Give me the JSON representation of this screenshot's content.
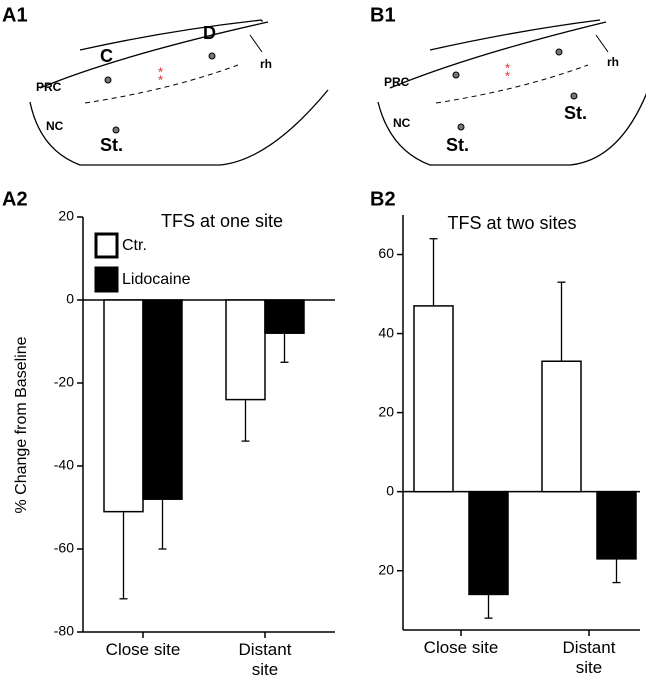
{
  "diagrams": [
    {
      "panel_label": "A1",
      "C": "C",
      "D": "D",
      "PRC": "PRC",
      "NC": "NC",
      "St": "St.",
      "rh": "rh",
      "asterisks": [
        "*",
        "*"
      ]
    },
    {
      "panel_label": "B1",
      "PRC": "PRC",
      "NC": "NC",
      "St": [
        "St.",
        "St."
      ],
      "rh": "rh",
      "asterisks": [
        "*",
        "*"
      ]
    }
  ],
  "chart_data": [
    {
      "type": "bar",
      "panel_label": "A2",
      "title": "TFS at one site",
      "ylabel": "% Change from Baseline",
      "categories": [
        "Close site",
        "Distant site"
      ],
      "series": [
        {
          "name": "Ctr.",
          "color": "#ffffff",
          "values": [
            -51,
            -24
          ],
          "errors": [
            21,
            10
          ]
        },
        {
          "name": "Lidocaine",
          "color": "#000000",
          "values": [
            -48,
            -8
          ],
          "errors": [
            12,
            7
          ]
        }
      ],
      "ylim": [
        -80,
        20
      ],
      "yticks": [
        20,
        0,
        -20,
        -40,
        -60,
        -80
      ],
      "legend": "top-left"
    },
    {
      "type": "bar",
      "panel_label": "B2",
      "title": "TFS at two sites",
      "categories": [
        "Close site",
        "Distant site"
      ],
      "series": [
        {
          "color": "#ffffff",
          "values": [
            47,
            33
          ],
          "errors": [
            17,
            20
          ]
        },
        {
          "color": "#000000",
          "values": [
            -26,
            -17
          ],
          "errors": [
            6,
            6
          ]
        }
      ],
      "ylim": [
        -35,
        70
      ],
      "yticks": [
        60,
        40,
        20,
        0,
        {
          "value": -20,
          "label": "20"
        }
      ]
    }
  ]
}
